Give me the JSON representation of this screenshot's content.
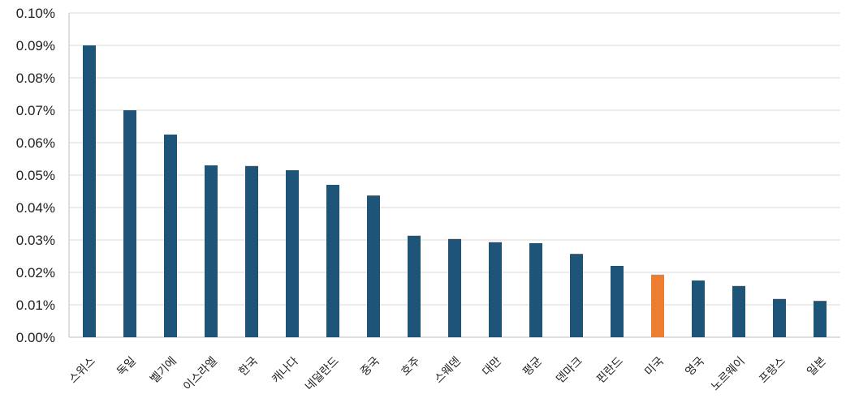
{
  "chart_data": {
    "type": "bar",
    "title": "",
    "xlabel": "",
    "ylabel": "",
    "categories": [
      "스위스",
      "독일",
      "벨기에",
      "이스라엘",
      "한국",
      "캐나다",
      "네덜란드",
      "중국",
      "호주",
      "스웨덴",
      "대만",
      "평균",
      "덴마크",
      "핀란드",
      "미국",
      "영국",
      "노르웨이",
      "프랑스",
      "일본"
    ],
    "values": [
      0.09,
      0.07,
      0.0625,
      0.053,
      0.0528,
      0.0515,
      0.047,
      0.0437,
      0.0313,
      0.0303,
      0.0293,
      0.029,
      0.0257,
      0.022,
      0.0193,
      0.0175,
      0.0158,
      0.0118,
      0.0112
    ],
    "value_unit": "%",
    "ylim": [
      0,
      0.1
    ],
    "yticks": [
      "0.00%",
      "0.01%",
      "0.02%",
      "0.03%",
      "0.04%",
      "0.05%",
      "0.06%",
      "0.07%",
      "0.08%",
      "0.09%",
      "0.10%"
    ],
    "grid": true,
    "legend": "none",
    "colors": {
      "default": "#1f5479",
      "highlight": "#ed7d31",
      "grid": "#d9d9d9"
    },
    "highlight_category": "미국"
  }
}
